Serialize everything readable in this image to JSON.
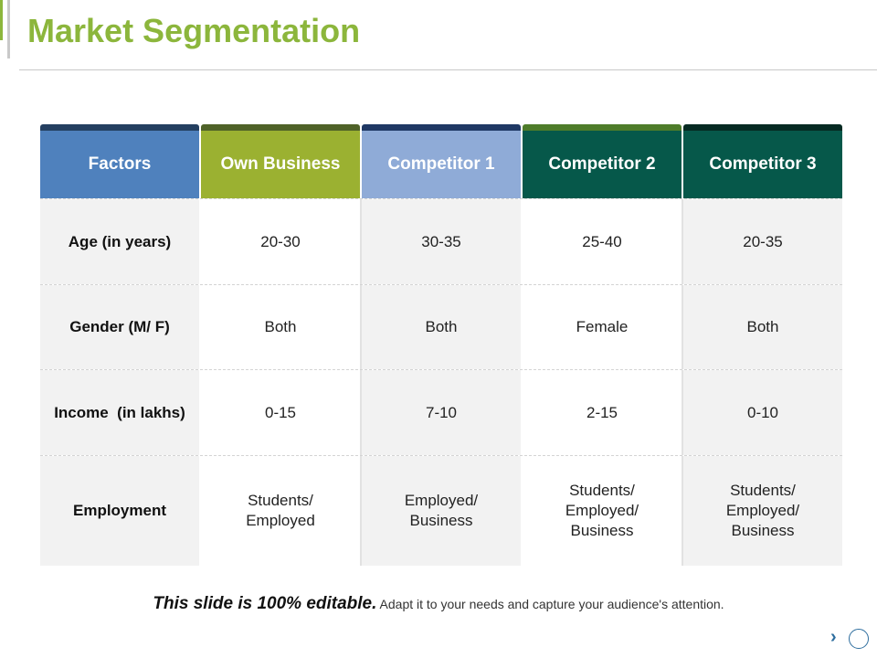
{
  "title": "Market Segmentation",
  "colors": {
    "accent": "#8cb63c",
    "factors_header": "#4f81bd",
    "own_business_header": "#9bb131",
    "competitor1_header": "#8fabd7",
    "competitor2_header": "#06584a",
    "competitor3_header": "#06584a",
    "cap_factors": "#243f60",
    "cap_own": "#4f6228",
    "cap_comp1": "#1f3864",
    "cap_comp2": "#4e7c2a",
    "cap_comp3": "#062a22"
  },
  "table": {
    "headers": [
      "Factors",
      "Own Business",
      "Competitor 1",
      "Competitor 2",
      "Competitor 3"
    ],
    "rows": [
      {
        "factor": "Age (in years)",
        "values": [
          "20-30",
          "30-35",
          "25-40",
          "20-35"
        ]
      },
      {
        "factor": "Gender (M/ F)",
        "values": [
          "Both",
          "Both",
          "Female",
          "Both"
        ]
      },
      {
        "factor": "Income  (in lakhs)",
        "values": [
          "0-15",
          "7-10",
          "2-15",
          "0-10"
        ]
      },
      {
        "factor": "Employment",
        "values": [
          "Students/\nEmployed",
          "Employed/\nBusiness",
          "Students/\nEmployed/\nBusiness",
          "Students/\nEmployed/\nBusiness"
        ]
      }
    ]
  },
  "caption": {
    "emphasis": "This slide is 100% editable.",
    "text": "Adapt it to your needs and capture your audience's attention."
  },
  "nav": {
    "next_icon": "chevron-right-icon",
    "circle_icon": "circle-icon",
    "next_glyph": "›"
  }
}
